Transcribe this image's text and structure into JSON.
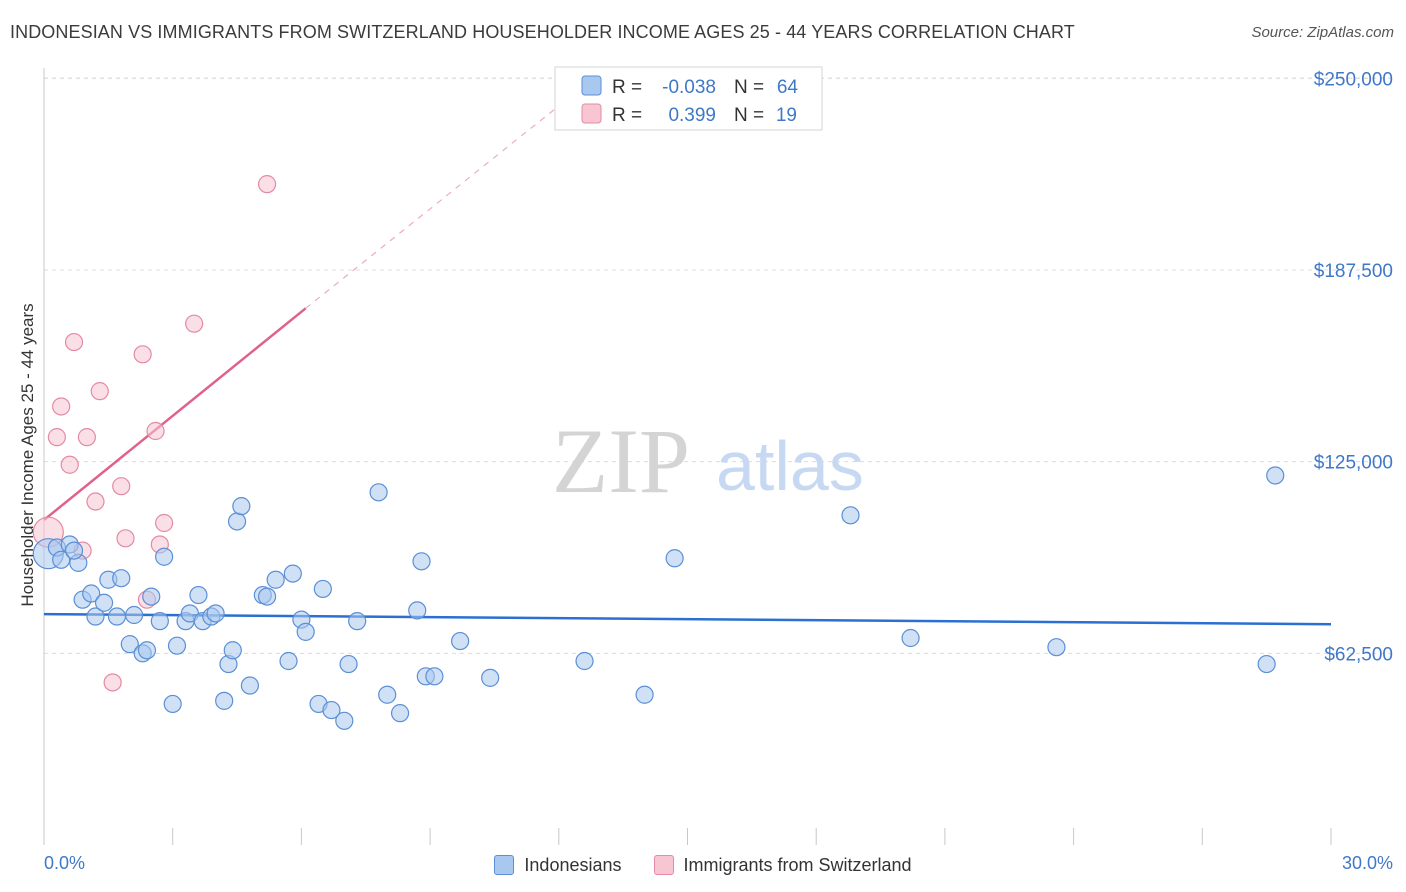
{
  "header": {
    "title": "INDONESIAN VS IMMIGRANTS FROM SWITZERLAND HOUSEHOLDER INCOME AGES 25 - 44 YEARS CORRELATION CHART",
    "source": "Source: ZipAtlas.com"
  },
  "watermark": {
    "zip": "ZIP",
    "atlas": "atlas"
  },
  "colors": {
    "blue_fill": "#a9c8ef",
    "blue_stroke": "#5b8fd6",
    "blue_line": "#2a6fd1",
    "pink_fill": "#f8c5d3",
    "pink_stroke": "#e48aa5",
    "pink_line": "#e0628a",
    "axis_text": "#3f78c8",
    "grid": "#dcdcdc"
  },
  "legend_top": {
    "rows": [
      {
        "r_label": "R =",
        "r_value": "-0.038",
        "n_label": "N =",
        "n_value": "64"
      },
      {
        "r_label": "R =",
        "r_value": "0.399",
        "n_label": "N =",
        "n_value": "19"
      }
    ]
  },
  "legend_bottom": {
    "series1": "Indonesians",
    "series2": "Immigrants from Switzerland"
  },
  "chart_data": {
    "type": "scatter",
    "title": "INDONESIAN VS IMMIGRANTS FROM SWITZERLAND HOUSEHOLDER INCOME AGES 25 - 44 YEARS CORRELATION CHART",
    "xlabel": "",
    "ylabel": "Householder Income Ages 25 - 44 years",
    "xlim": [
      0,
      30
    ],
    "ylim": [
      0,
      262500
    ],
    "x_tick_labels": [
      "0.0%",
      "30.0%"
    ],
    "y_ticks": [
      62500,
      125000,
      187500,
      250000
    ],
    "y_tick_labels": [
      "$62,500",
      "$125,000",
      "$187,500",
      "$250,000"
    ],
    "grid": true,
    "legend_position": "top-center",
    "series": [
      {
        "name": "Indonesians",
        "r": -0.038,
        "n": 64,
        "trend": {
          "x": [
            0,
            30
          ],
          "y": [
            75300,
            72000
          ],
          "dashed_extension": false
        },
        "points": [
          {
            "x": 0.1,
            "y": 95000,
            "large": true
          },
          {
            "x": 0.3,
            "y": 97000
          },
          {
            "x": 0.4,
            "y": 93000
          },
          {
            "x": 0.6,
            "y": 98000
          },
          {
            "x": 0.8,
            "y": 92000
          },
          {
            "x": 0.7,
            "y": 96000
          },
          {
            "x": 0.9,
            "y": 80000
          },
          {
            "x": 1.1,
            "y": 82000
          },
          {
            "x": 1.2,
            "y": 74500
          },
          {
            "x": 1.4,
            "y": 79000
          },
          {
            "x": 1.5,
            "y": 86500
          },
          {
            "x": 1.7,
            "y": 74500
          },
          {
            "x": 1.8,
            "y": 87000
          },
          {
            "x": 2.0,
            "y": 65500
          },
          {
            "x": 2.1,
            "y": 75000
          },
          {
            "x": 2.3,
            "y": 62500
          },
          {
            "x": 2.4,
            "y": 63500
          },
          {
            "x": 2.5,
            "y": 81000
          },
          {
            "x": 2.7,
            "y": 73000
          },
          {
            "x": 2.8,
            "y": 94000
          },
          {
            "x": 3.0,
            "y": 46000
          },
          {
            "x": 3.1,
            "y": 65000
          },
          {
            "x": 3.3,
            "y": 73000
          },
          {
            "x": 3.4,
            "y": 75500
          },
          {
            "x": 3.6,
            "y": 81500
          },
          {
            "x": 3.7,
            "y": 73000
          },
          {
            "x": 3.9,
            "y": 74500
          },
          {
            "x": 4.0,
            "y": 75500
          },
          {
            "x": 4.2,
            "y": 47000
          },
          {
            "x": 4.3,
            "y": 59000
          },
          {
            "x": 4.4,
            "y": 63500
          },
          {
            "x": 4.5,
            "y": 105500
          },
          {
            "x": 4.6,
            "y": 110500
          },
          {
            "x": 4.8,
            "y": 52000
          },
          {
            "x": 5.1,
            "y": 81500
          },
          {
            "x": 5.2,
            "y": 81000
          },
          {
            "x": 5.4,
            "y": 86500
          },
          {
            "x": 5.7,
            "y": 60000
          },
          {
            "x": 5.8,
            "y": 88500
          },
          {
            "x": 6.0,
            "y": 73500
          },
          {
            "x": 6.1,
            "y": 69500
          },
          {
            "x": 6.4,
            "y": 46000
          },
          {
            "x": 6.5,
            "y": 83500
          },
          {
            "x": 6.7,
            "y": 44000
          },
          {
            "x": 7.0,
            "y": 40500
          },
          {
            "x": 7.1,
            "y": 59000
          },
          {
            "x": 7.3,
            "y": 73000
          },
          {
            "x": 7.8,
            "y": 115000
          },
          {
            "x": 8.0,
            "y": 49000
          },
          {
            "x": 8.3,
            "y": 43000
          },
          {
            "x": 8.7,
            "y": 76500
          },
          {
            "x": 8.8,
            "y": 92500
          },
          {
            "x": 8.9,
            "y": 55000
          },
          {
            "x": 9.1,
            "y": 55000
          },
          {
            "x": 9.7,
            "y": 66500
          },
          {
            "x": 10.4,
            "y": 54500
          },
          {
            "x": 12.6,
            "y": 60000
          },
          {
            "x": 14.0,
            "y": 49000
          },
          {
            "x": 14.7,
            "y": 93500
          },
          {
            "x": 18.8,
            "y": 107500
          },
          {
            "x": 20.2,
            "y": 67500
          },
          {
            "x": 23.6,
            "y": 64500
          },
          {
            "x": 28.5,
            "y": 59000
          },
          {
            "x": 28.7,
            "y": 120500
          }
        ]
      },
      {
        "name": "Immigrants from Switzerland",
        "r": 0.399,
        "n": 19,
        "trend": {
          "x": [
            0,
            6.1
          ],
          "y": [
            106000,
            175000
          ],
          "dashed_extension_to": [
            12.0,
            241000
          ]
        },
        "points": [
          {
            "x": 0.1,
            "y": 102000,
            "large": true
          },
          {
            "x": 0.3,
            "y": 133000
          },
          {
            "x": 0.4,
            "y": 143000
          },
          {
            "x": 0.6,
            "y": 124000
          },
          {
            "x": 0.7,
            "y": 164000
          },
          {
            "x": 0.9,
            "y": 96000
          },
          {
            "x": 1.0,
            "y": 133000
          },
          {
            "x": 1.2,
            "y": 112000
          },
          {
            "x": 1.3,
            "y": 148000
          },
          {
            "x": 1.6,
            "y": 53000
          },
          {
            "x": 1.8,
            "y": 117000
          },
          {
            "x": 1.9,
            "y": 100000
          },
          {
            "x": 2.3,
            "y": 160000
          },
          {
            "x": 2.4,
            "y": 80000
          },
          {
            "x": 2.6,
            "y": 135000
          },
          {
            "x": 2.7,
            "y": 98000
          },
          {
            "x": 2.8,
            "y": 105000
          },
          {
            "x": 3.5,
            "y": 170000
          },
          {
            "x": 5.2,
            "y": 215500
          }
        ]
      }
    ]
  }
}
